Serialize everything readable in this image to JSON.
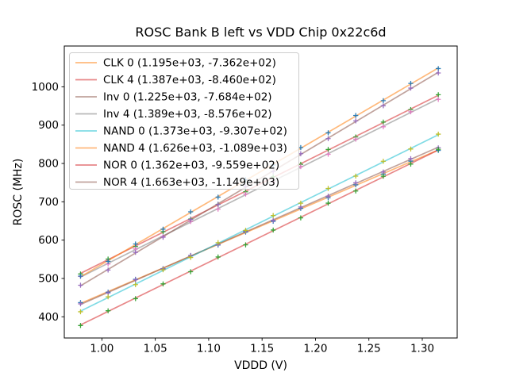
{
  "chart_data": {
    "type": "scatter",
    "title": "ROSC Bank B left vs VDD Chip 0x22c6d",
    "xlabel": "VDDD (V)",
    "ylabel": "ROSC (MHz)",
    "xlim": [
      0.9648,
      1.3327
    ],
    "ylim": [
      344.7,
      1106.4
    ],
    "x_tick_values": [
      1.0,
      1.05,
      1.1,
      1.15,
      1.2,
      1.25,
      1.3
    ],
    "x_tick_labels": [
      "1.00",
      "1.05",
      "1.10",
      "1.15",
      "1.20",
      "1.25",
      "1.30"
    ],
    "y_tick_values": [
      400,
      500,
      600,
      700,
      800,
      900,
      1000
    ],
    "y_tick_labels": [
      "400",
      "500",
      "600",
      "700",
      "800",
      "900",
      "1000"
    ],
    "grid": false,
    "legend_position": "upper left",
    "x": [
      0.98,
      1.0058,
      1.0315,
      1.0573,
      1.0831,
      1.1088,
      1.1346,
      1.1604,
      1.1862,
      1.2119,
      1.2377,
      1.2635,
      1.2892,
      1.315
    ],
    "series": [
      {
        "name": "CLK 0",
        "label": "CLK 0 (1.195e+03, -7.362e+02)",
        "fit_slope": 1195.0,
        "fit_intercept": -736.2,
        "line_color": "#ff7f0e",
        "marker_color": "#1f77b4",
        "y": [
          437.1,
          464.2,
          497.9,
          525.6,
          559.8,
          587.2,
          621.0,
          649.1,
          682.8,
          710.5,
          744.3,
          772.2,
          806.1,
          833.9
        ]
      },
      {
        "name": "CLK 4",
        "label": "CLK 4 (1.387e+03, -8.460e+02)",
        "fit_slope": 1387.0,
        "fit_intercept": -846.0,
        "line_color": "#d62728",
        "marker_color": "#2ca02c",
        "y": [
          511.7,
          550.6,
          583.2,
          622.0,
          654.8,
          693.5,
          726.1,
          765.1,
          797.7,
          836.5,
          869.1,
          908.0,
          940.6,
          979.4
        ]
      },
      {
        "name": "Inv 0",
        "label": "Inv 0 (1.225e+03, -7.684e+02)",
        "fit_slope": 1225.0,
        "fit_intercept": -768.4,
        "line_color": "#8c564b",
        "marker_color": "#9467bd",
        "y": [
          433.8,
          462.1,
          496.9,
          525.2,
          560.0,
          588.3,
          623.2,
          651.4,
          686.4,
          714.6,
          749.5,
          777.7,
          812.6,
          840.8
        ]
      },
      {
        "name": "Inv 4",
        "label": "Inv 4 (1.389e+03, -8.576e+02)",
        "fit_slope": 1389.0,
        "fit_intercept": -857.6,
        "line_color": "#7f7f7f",
        "marker_color": "#e377c2",
        "y": [
          505.3,
          537.8,
          576.9,
          609.3,
          648.5,
          680.8,
          720.1,
          752.5,
          791.7,
          824.0,
          863.3,
          895.7,
          934.8,
          967.2
        ]
      },
      {
        "name": "NAND 0",
        "label": "NAND 0 (1.373e+03, -9.307e+02)",
        "fit_slope": 1373.0,
        "fit_intercept": -930.7,
        "line_color": "#17becf",
        "marker_color": "#bcbd22",
        "y": [
          413.1,
          452.0,
          483.9,
          522.7,
          554.7,
          593.4,
          625.4,
          664.2,
          696.3,
          734.9,
          767.0,
          805.8,
          837.7,
          876.5
        ]
      },
      {
        "name": "NAND 4",
        "label": "NAND 4 (1.626e+03, -1.089e+03)",
        "fit_slope": 1626.0,
        "fit_intercept": -1089.0,
        "line_color": "#ff7f0e",
        "marker_color": "#1f77b4",
        "y": [
          506.2,
          544.7,
          589.9,
          628.5,
          673.8,
          712.2,
          757.6,
          796.1,
          841.5,
          879.9,
          925.2,
          963.8,
          1008.9,
          1047.5
        ]
      },
      {
        "name": "NOR 0",
        "label": "NOR 0 (1.362e+03, -9.559e+02)",
        "fit_slope": 1362.0,
        "fit_intercept": -955.9,
        "line_color": "#d62728",
        "marker_color": "#2ca02c",
        "y": [
          377.2,
          415.7,
          447.3,
          485.8,
          517.6,
          556.0,
          587.7,
          626.3,
          658.0,
          696.4,
          728.2,
          766.7,
          798.3,
          836.8
        ]
      },
      {
        "name": "NOR 4",
        "label": "NOR 4 (1.663e+03, -1.149e+03)",
        "fit_slope": 1663.0,
        "fit_intercept": -1149.0,
        "line_color": "#8c564b",
        "marker_color": "#9467bd",
        "y": [
          482.4,
          522.0,
          568.1,
          607.6,
          653.9,
          693.2,
          739.5,
          779.0,
          825.4,
          864.7,
          911.0,
          950.5,
          996.6,
          1036.1
        ]
      }
    ]
  }
}
